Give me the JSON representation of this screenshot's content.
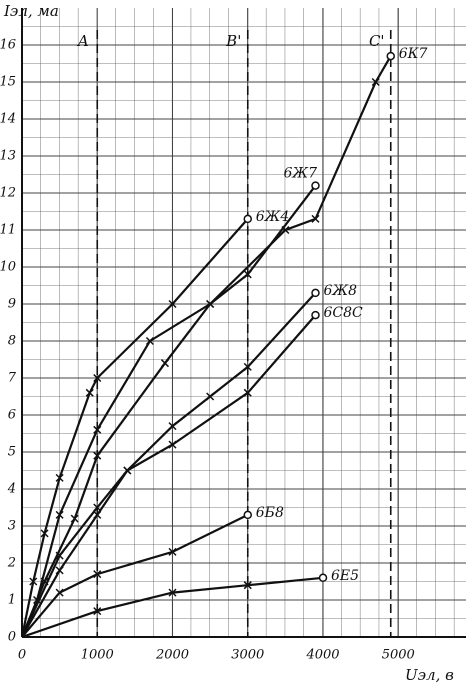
{
  "chart_data": {
    "type": "line",
    "y_label": "Iэл, ма",
    "x_label": "Uэл, в",
    "xlim": [
      0,
      5900
    ],
    "ylim": [
      0,
      17
    ],
    "xticks": [
      0,
      1000,
      2000,
      3000,
      4000,
      5000
    ],
    "yticks": [
      0,
      1,
      2,
      3,
      4,
      5,
      6,
      7,
      8,
      9,
      10,
      11,
      12,
      13,
      14,
      15,
      16
    ],
    "grid": true,
    "color": "#111111",
    "markers": [
      {
        "label": "A",
        "x": 1000
      },
      {
        "label": "B'",
        "x": 3000
      },
      {
        "label": "C'",
        "x": 4900
      }
    ],
    "series": [
      {
        "name": "6Ж4",
        "x": [
          0,
          150,
          300,
          500,
          900,
          1000,
          2000,
          3000
        ],
        "values": [
          0,
          1.5,
          2.8,
          4.3,
          6.6,
          7,
          9,
          11.3
        ]
      },
      {
        "name": "6Ж7",
        "x": [
          0,
          200,
          500,
          1000,
          1700,
          2500,
          3000,
          3900
        ],
        "values": [
          0,
          1,
          3.3,
          5.6,
          8,
          9,
          9.8,
          12.2
        ]
      },
      {
        "name": "6К7",
        "x": [
          0,
          300,
          700,
          1000,
          1900,
          2500,
          3500,
          3900,
          4700,
          4900
        ],
        "values": [
          0,
          1.5,
          3.2,
          4.9,
          7.4,
          9,
          11,
          11.3,
          15,
          15.7
        ]
      },
      {
        "name": "6Ж8",
        "x": [
          0,
          500,
          1000,
          1400,
          2000,
          2500,
          3000,
          3900
        ],
        "values": [
          0,
          2.2,
          3.5,
          4.5,
          5.7,
          6.5,
          7.3,
          9.3
        ]
      },
      {
        "name": "6С8С",
        "x": [
          0,
          500,
          1000,
          1400,
          2000,
          3000,
          3900
        ],
        "values": [
          0,
          1.8,
          3.3,
          4.5,
          5.2,
          6.6,
          8.7
        ]
      },
      {
        "name": "6Б8",
        "x": [
          0,
          500,
          1000,
          2000,
          3000
        ],
        "values": [
          0,
          1.2,
          1.7,
          2.3,
          3.3
        ]
      },
      {
        "name": "6Е5",
        "x": [
          0,
          1000,
          2000,
          3000,
          4000
        ],
        "values": [
          0,
          0.7,
          1.2,
          1.4,
          1.6
        ]
      }
    ]
  }
}
